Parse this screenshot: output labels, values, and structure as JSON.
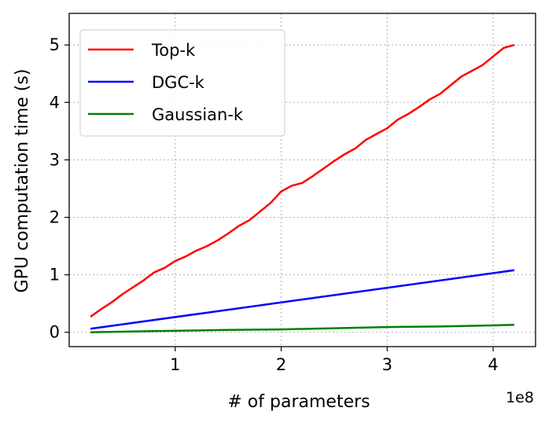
{
  "chart_data": {
    "type": "line",
    "xlabel": "# of parameters",
    "ylabel": "GPU computation time (s)",
    "x_offset_text": "1e8",
    "xlim": [
      0.0,
      4.4
    ],
    "ylim": [
      -0.25,
      5.55
    ],
    "x_ticks": [
      1,
      2,
      3,
      4
    ],
    "x_tick_labels": [
      "1",
      "2",
      "3",
      "4"
    ],
    "y_ticks": [
      0,
      1,
      2,
      3,
      4,
      5
    ],
    "y_tick_labels": [
      "0",
      "1",
      "2",
      "3",
      "4",
      "5"
    ],
    "grid": true,
    "legend_position": "top-left",
    "series": [
      {
        "name": "Top-k",
        "color": "#ff0000",
        "x": [
          0.2,
          0.3,
          0.4,
          0.5,
          0.6,
          0.7,
          0.8,
          0.9,
          1.0,
          1.1,
          1.2,
          1.3,
          1.4,
          1.5,
          1.6,
          1.7,
          1.8,
          1.9,
          2.0,
          2.1,
          2.2,
          2.3,
          2.4,
          2.5,
          2.6,
          2.7,
          2.8,
          2.9,
          3.0,
          3.1,
          3.2,
          3.3,
          3.4,
          3.5,
          3.6,
          3.7,
          3.8,
          3.9,
          4.0,
          4.1,
          4.2
        ],
        "y": [
          0.27,
          0.4,
          0.52,
          0.66,
          0.78,
          0.9,
          1.04,
          1.12,
          1.24,
          1.32,
          1.42,
          1.5,
          1.6,
          1.72,
          1.85,
          1.95,
          2.1,
          2.25,
          2.45,
          2.55,
          2.6,
          2.72,
          2.85,
          2.98,
          3.1,
          3.2,
          3.35,
          3.45,
          3.55,
          3.7,
          3.8,
          3.92,
          4.05,
          4.15,
          4.3,
          4.45,
          4.55,
          4.65,
          4.8,
          4.95,
          5.0
        ]
      },
      {
        "name": "DGC-k",
        "color": "#0000ff",
        "x": [
          0.2,
          4.2
        ],
        "y": [
          0.06,
          1.08
        ]
      },
      {
        "name": "Gaussian-k",
        "color": "#008000",
        "x": [
          0.2,
          0.8,
          1.5,
          2.0,
          2.5,
          3.0,
          3.5,
          4.0,
          4.2
        ],
        "y": [
          0.0,
          0.02,
          0.04,
          0.05,
          0.07,
          0.09,
          0.1,
          0.12,
          0.13
        ]
      }
    ]
  }
}
